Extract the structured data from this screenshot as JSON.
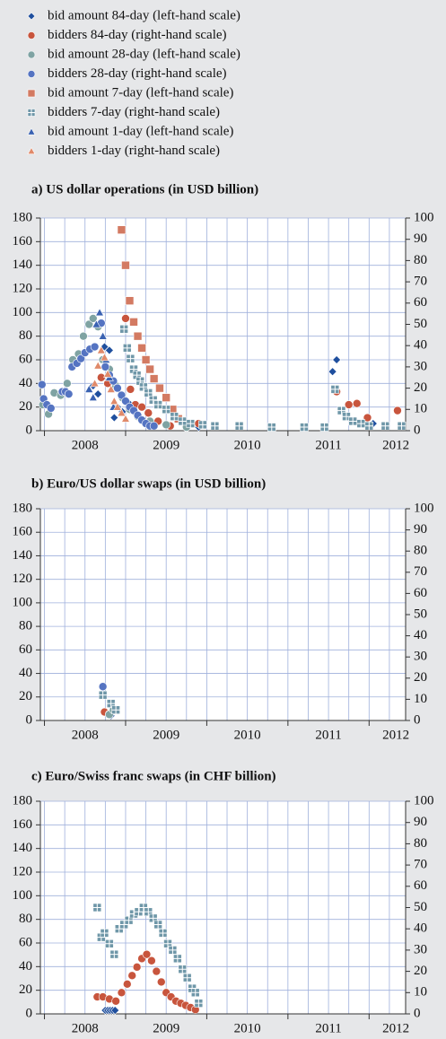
{
  "chart_data": [
    {
      "type": "scatter",
      "title": "a) US dollar operations (in USD billion)",
      "xlim": [
        2007.95,
        2012.45
      ],
      "xticks": [
        {
          "value": 2008.5,
          "label": "2008"
        },
        {
          "value": 2009.5,
          "label": "2009"
        },
        {
          "value": 2010.5,
          "label": "2010"
        },
        {
          "value": 2011.5,
          "label": "2011"
        },
        {
          "value": 2012.33,
          "label": "2012"
        }
      ],
      "ylim": [
        0,
        180
      ],
      "yticks": [
        0,
        20,
        40,
        60,
        80,
        100,
        120,
        140,
        160,
        180
      ],
      "y2lim": [
        0,
        100
      ],
      "y2ticks": [
        0,
        10,
        20,
        30,
        40,
        50,
        60,
        70,
        80,
        90,
        100
      ],
      "grid": true,
      "series": [
        {
          "name": "bid amount 84-day (left-hand scale)",
          "color": "#1f4f9e",
          "marker": "diamond",
          "x": [
            2008.6,
            2008.66,
            2008.74,
            2008.8,
            2008.86,
            2008.9,
            2008.96,
            2009.03,
            2009.9,
            2011.55,
            2011.6,
            2012.05
          ],
          "values": [
            38,
            31,
            71,
            68,
            11,
            20,
            16,
            24,
            3,
            50,
            60,
            6
          ]
        },
        {
          "name": "bidders 84-day (right-hand scale)",
          "color": "#c8553d",
          "marker": "circle",
          "x": [
            2008.7,
            2008.78,
            2009.0,
            2009.06,
            2009.12,
            2009.2,
            2009.28,
            2009.4,
            2009.55,
            2009.9,
            2011.6,
            2011.75,
            2011.85,
            2011.98,
            2012.35
          ],
          "values": [
            45,
            40,
            95,
            35,
            22,
            20,
            15,
            8,
            4,
            6,
            33,
            22,
            23,
            11,
            17
          ]
        },
        {
          "name": "bid amount 28-day (left-hand scale)",
          "color": "#7fa3a3",
          "marker": "circle",
          "x": [
            2007.98,
            2008.05,
            2008.12,
            2008.2,
            2008.28,
            2008.35,
            2008.42,
            2008.48,
            2008.55,
            2008.6,
            2008.66,
            2008.72,
            2008.8,
            2008.88,
            2008.96,
            2009.05,
            2009.15,
            2009.3,
            2009.5,
            2009.75
          ],
          "values": [
            22,
            14,
            32,
            30,
            40,
            60,
            65,
            80,
            90,
            95,
            88,
            60,
            52,
            38,
            28,
            18,
            12,
            8,
            5,
            3
          ]
        },
        {
          "name": "bidders 28-day (right-hand scale)",
          "color": "#5574c2",
          "marker": "circle",
          "x": [
            2007.97,
            2007.99,
            2008.03,
            2008.08,
            2008.22,
            2008.26,
            2008.3,
            2008.34,
            2008.4,
            2008.45,
            2008.5,
            2008.56,
            2008.62,
            2008.7,
            2008.75,
            2008.8,
            2008.85,
            2008.9,
            2008.95,
            2009.0,
            2009.05,
            2009.1,
            2009.15,
            2009.2,
            2009.25,
            2009.3,
            2009.35
          ],
          "values": [
            39,
            27,
            22,
            19,
            33,
            33,
            31,
            54,
            57,
            61,
            66,
            69,
            71,
            91,
            54,
            47,
            42,
            36,
            30,
            25,
            20,
            17,
            13,
            9,
            6,
            4,
            4
          ]
        },
        {
          "name": "bid amount 7-day (left-hand scale)",
          "color": "#d37a62",
          "marker": "square",
          "x": [
            2008.95,
            2009.0,
            2009.05,
            2009.1,
            2009.15,
            2009.2,
            2009.25,
            2009.3,
            2009.35,
            2009.42,
            2009.5,
            2009.58,
            2009.65
          ],
          "values": [
            170,
            140,
            110,
            92,
            80,
            70,
            60,
            52,
            44,
            36,
            28,
            18,
            10
          ]
        },
        {
          "name": "bidders 7-day (right-hand scale)",
          "color": "#6f97a8",
          "marker": "plus-square",
          "x": [
            2008.98,
            2009.02,
            2009.06,
            2009.1,
            2009.14,
            2009.18,
            2009.22,
            2009.28,
            2009.34,
            2009.4,
            2009.5,
            2009.6,
            2009.7,
            2009.8,
            2009.95,
            2010.1,
            2010.4,
            2010.8,
            2011.2,
            2011.45,
            2011.58,
            2011.66,
            2011.72,
            2011.8,
            2011.9,
            2012.0,
            2012.2,
            2012.4
          ],
          "values": [
            86,
            70,
            61,
            52,
            47,
            42,
            37,
            32,
            26,
            22,
            18,
            12,
            8,
            6,
            5,
            4,
            4,
            3,
            3,
            3,
            35,
            17,
            12,
            8,
            6,
            4,
            4,
            4
          ]
        },
        {
          "name": "bid amount 1-day (left-hand scale)",
          "color": "#3a62b2",
          "marker": "triangle",
          "x": [
            2008.55,
            2008.6,
            2008.64,
            2008.68,
            2008.72,
            2008.76,
            2008.8,
            2008.85
          ],
          "values": [
            35,
            28,
            90,
            100,
            80,
            60,
            45,
            20
          ]
        },
        {
          "name": "bidders 1-day (right-hand scale)",
          "color": "#e08a6a",
          "marker": "triangle",
          "x": [
            2008.62,
            2008.66,
            2008.7,
            2008.74,
            2008.78,
            2008.82,
            2008.86,
            2008.9,
            2008.95,
            2009.0
          ],
          "values": [
            40,
            55,
            68,
            62,
            48,
            35,
            25,
            20,
            15,
            10
          ]
        }
      ]
    },
    {
      "type": "scatter",
      "title": "b) Euro/US dollar swaps (in USD billion)",
      "xlim": [
        2007.95,
        2012.45
      ],
      "xticks": [
        {
          "value": 2008.5,
          "label": "2008"
        },
        {
          "value": 2009.5,
          "label": "2009"
        },
        {
          "value": 2010.5,
          "label": "2010"
        },
        {
          "value": 2011.5,
          "label": "2011"
        },
        {
          "value": 2012.33,
          "label": "2012"
        }
      ],
      "ylim": [
        0,
        180
      ],
      "yticks": [
        0,
        20,
        40,
        60,
        80,
        100,
        120,
        140,
        160,
        180
      ],
      "y2lim": [
        0,
        100
      ],
      "y2ticks": [
        0,
        10,
        20,
        30,
        40,
        50,
        60,
        70,
        80,
        90,
        100
      ],
      "grid": true,
      "series": [
        {
          "color": "#1f4f9e",
          "marker": "diamond",
          "x": [
            2008.82
          ],
          "values": [
            4
          ]
        },
        {
          "color": "#c8553d",
          "marker": "circle",
          "x": [
            2008.74,
            2008.8
          ],
          "axis": "y2",
          "values": [
            4,
            3
          ]
        },
        {
          "color": "#7fa3a3",
          "marker": "circle",
          "x": [
            2008.8,
            2008.85
          ],
          "values": [
            5,
            9
          ]
        },
        {
          "color": "#5574c2",
          "marker": "circle",
          "x": [
            2008.72
          ],
          "axis": "y2",
          "values": [
            16
          ]
        },
        {
          "color": "#6f97a8",
          "marker": "plus-square",
          "x": [
            2008.72,
            2008.82,
            2008.88
          ],
          "axis": "y2",
          "values": [
            12,
            8,
            5
          ]
        }
      ]
    },
    {
      "type": "scatter",
      "title": "c) Euro/Swiss franc swaps (in CHF billion)",
      "xlim": [
        2007.95,
        2012.45
      ],
      "xticks": [
        {
          "value": 2008.5,
          "label": "2008"
        },
        {
          "value": 2009.5,
          "label": "2009"
        },
        {
          "value": 2010.5,
          "label": "2010"
        },
        {
          "value": 2011.5,
          "label": "2011"
        },
        {
          "value": 2012.33,
          "label": "2012"
        }
      ],
      "ylim": [
        0,
        180
      ],
      "yticks": [
        0,
        20,
        40,
        60,
        80,
        100,
        120,
        140,
        160,
        180
      ],
      "y2lim": [
        0,
        100
      ],
      "y2ticks": [
        0,
        10,
        20,
        30,
        40,
        50,
        60,
        70,
        80,
        90,
        100
      ],
      "grid": true,
      "series": [
        {
          "color": "#1f4f9e",
          "marker": "diamond",
          "x": [
            2008.75,
            2008.78,
            2008.81,
            2008.84,
            2008.87
          ],
          "values": [
            3,
            3,
            3,
            3,
            3
          ]
        },
        {
          "color": "#c8553d",
          "marker": "circle",
          "axis": "y2",
          "x": [
            2008.65,
            2008.72,
            2008.8,
            2008.88,
            2008.95,
            2009.02,
            2009.08,
            2009.14,
            2009.2,
            2009.26,
            2009.32,
            2009.38,
            2009.44,
            2009.5,
            2009.56,
            2009.62,
            2009.68,
            2009.74,
            2009.8,
            2009.86
          ],
          "values": [
            8,
            8,
            7,
            6,
            10,
            14,
            18,
            22,
            26,
            28,
            25,
            20,
            15,
            10,
            8,
            6,
            5,
            4,
            3,
            2
          ]
        },
        {
          "color": "#6f97a8",
          "marker": "plus-square",
          "axis": "y2",
          "x": [
            2008.65,
            2008.7,
            2008.74,
            2008.8,
            2008.86,
            2008.92,
            2008.98,
            2009.04,
            2009.1,
            2009.16,
            2009.22,
            2009.28,
            2009.34,
            2009.4,
            2009.46,
            2009.52,
            2009.58,
            2009.64,
            2009.7,
            2009.76,
            2009.82,
            2009.86,
            2009.9
          ],
          "values": [
            50,
            36,
            38,
            33,
            28,
            40,
            42,
            44,
            47,
            48,
            50,
            48,
            45,
            42,
            38,
            33,
            30,
            26,
            21,
            17,
            12,
            10,
            5
          ]
        }
      ]
    }
  ]
}
